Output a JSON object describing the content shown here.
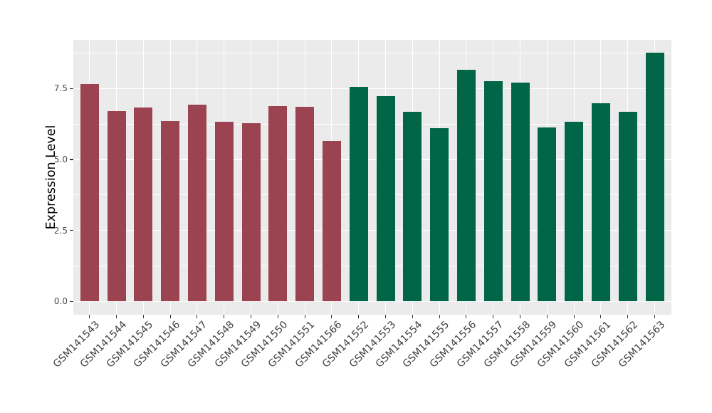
{
  "figure": {
    "background_color": "#FFFFFF",
    "panel_background_color": "#EBEBEB",
    "gridline_color": "#FFFFFF",
    "axis_text_color": "#4D4D4D",
    "axis_title_color": "#000000",
    "tick_mark_color": "#333333"
  },
  "chart_data": {
    "type": "bar",
    "title": "",
    "xlabel": "",
    "ylabel": "Expression Level",
    "ylim": [
      0,
      9.2
    ],
    "grid": true,
    "legend_position": "none",
    "y_major_ticks": [
      0,
      2.5,
      5,
      7.5
    ],
    "y_tick_labels": [
      "0.0",
      "2.5",
      "5.0",
      "7.5"
    ],
    "x_tick_angle_degrees": 45,
    "group_colors": {
      "group1": "#9C4352",
      "group2": "#016647"
    },
    "categories": [
      "GSM141543",
      "GSM141544",
      "GSM141545",
      "GSM141546",
      "GSM141547",
      "GSM141548",
      "GSM141549",
      "GSM141550",
      "GSM141551",
      "GSM141566",
      "GSM141552",
      "GSM141553",
      "GSM141554",
      "GSM141555",
      "GSM141556",
      "GSM141557",
      "GSM141558",
      "GSM141559",
      "GSM141560",
      "GSM141561",
      "GSM141562",
      "GSM141563"
    ],
    "values": [
      7.65,
      6.7,
      6.82,
      6.35,
      6.94,
      6.33,
      6.28,
      6.87,
      6.85,
      5.64,
      7.56,
      7.24,
      6.68,
      6.1,
      8.16,
      7.76,
      7.7,
      6.13,
      6.34,
      6.98,
      6.68,
      8.77
    ],
    "bars": [
      {
        "label": "GSM141543",
        "value": 7.65,
        "group": "group1"
      },
      {
        "label": "GSM141544",
        "value": 6.7,
        "group": "group1"
      },
      {
        "label": "GSM141545",
        "value": 6.82,
        "group": "group1"
      },
      {
        "label": "GSM141546",
        "value": 6.35,
        "group": "group1"
      },
      {
        "label": "GSM141547",
        "value": 6.94,
        "group": "group1"
      },
      {
        "label": "GSM141548",
        "value": 6.33,
        "group": "group1"
      },
      {
        "label": "GSM141549",
        "value": 6.28,
        "group": "group1"
      },
      {
        "label": "GSM141550",
        "value": 6.87,
        "group": "group1"
      },
      {
        "label": "GSM141551",
        "value": 6.85,
        "group": "group1"
      },
      {
        "label": "GSM141566",
        "value": 5.64,
        "group": "group1"
      },
      {
        "label": "GSM141552",
        "value": 7.56,
        "group": "group2"
      },
      {
        "label": "GSM141553",
        "value": 7.24,
        "group": "group2"
      },
      {
        "label": "GSM141554",
        "value": 6.68,
        "group": "group2"
      },
      {
        "label": "GSM141555",
        "value": 6.1,
        "group": "group2"
      },
      {
        "label": "GSM141556",
        "value": 8.16,
        "group": "group2"
      },
      {
        "label": "GSM141557",
        "value": 7.76,
        "group": "group2"
      },
      {
        "label": "GSM141558",
        "value": 7.7,
        "group": "group2"
      },
      {
        "label": "GSM141559",
        "value": 6.13,
        "group": "group2"
      },
      {
        "label": "GSM141560",
        "value": 6.34,
        "group": "group2"
      },
      {
        "label": "GSM141561",
        "value": 6.98,
        "group": "group2"
      },
      {
        "label": "GSM141562",
        "value": 6.68,
        "group": "group2"
      },
      {
        "label": "GSM141563",
        "value": 8.77,
        "group": "group2"
      }
    ]
  }
}
